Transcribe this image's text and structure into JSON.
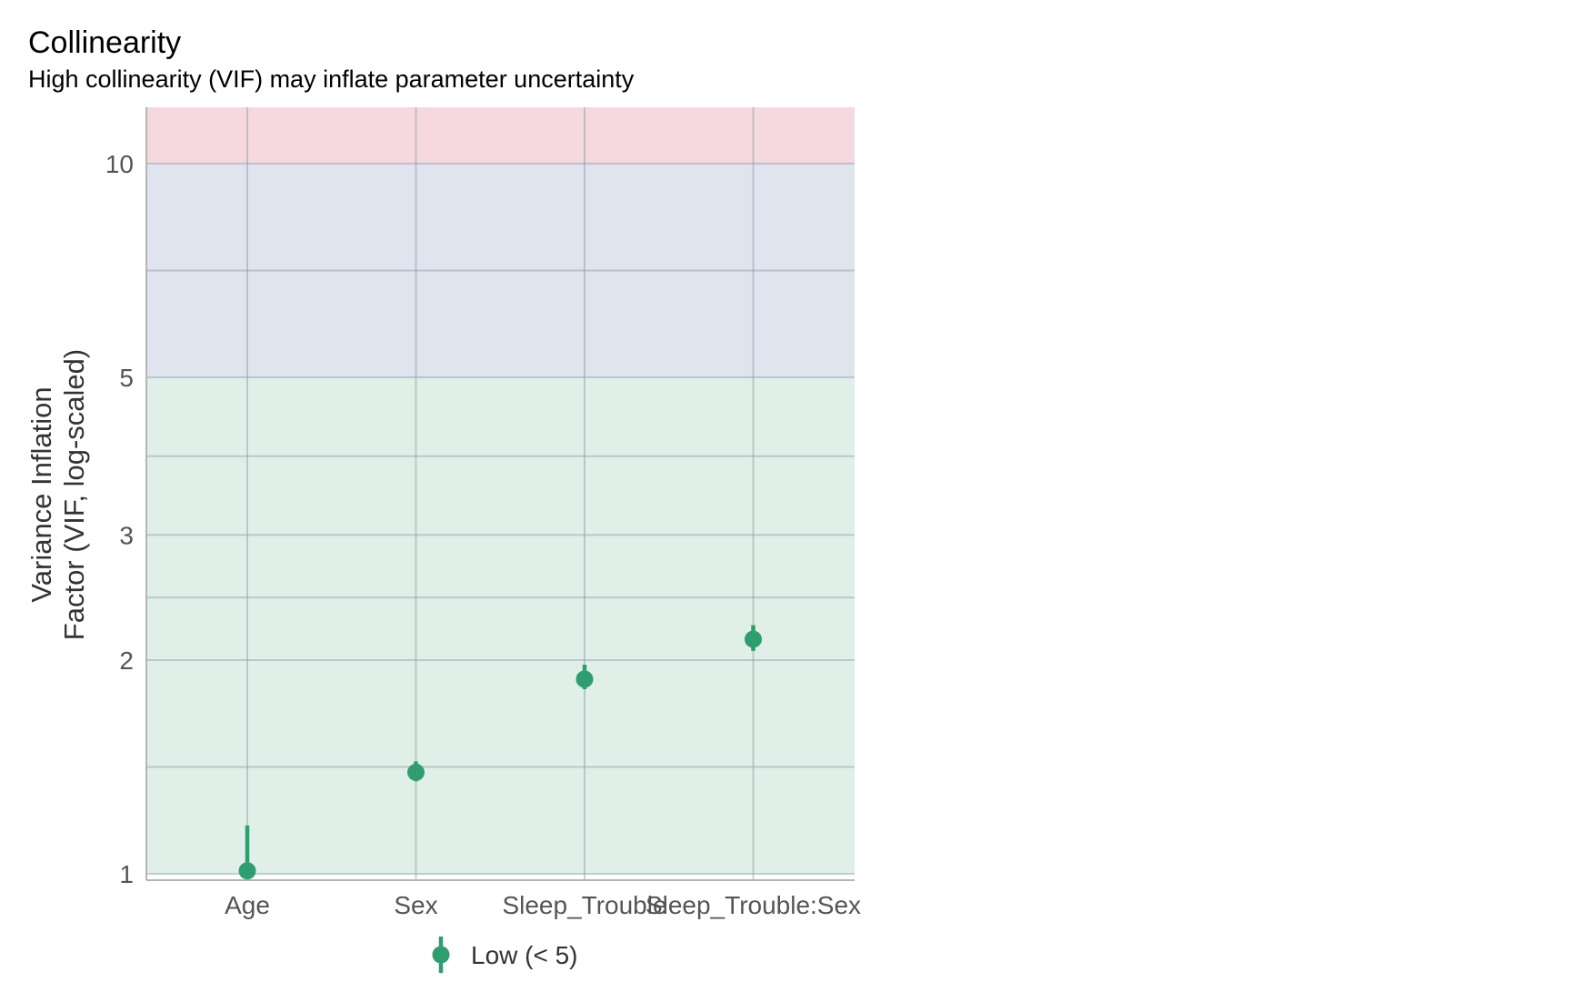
{
  "chart_data": {
    "type": "scatter",
    "title": "Collinearity",
    "subtitle": "High collinearity (VIF) may inflate parameter uncertainty",
    "ylabel_lines": [
      "Variance Inflation",
      "Factor (VIF, log-scaled)"
    ],
    "xlabel": "",
    "y_scale": "log10",
    "ylim": [
      0.98,
      12
    ],
    "y_ticks": [
      {
        "value": 1,
        "label": "1"
      },
      {
        "value": 2,
        "label": "2"
      },
      {
        "value": 3,
        "label": "3"
      },
      {
        "value": 5,
        "label": "5"
      },
      {
        "value": 10,
        "label": "10"
      }
    ],
    "y_minor_gridlines": [
      1.4142,
      2.4495,
      3.873,
      7.0711
    ],
    "categories": [
      "Age",
      "Sex",
      "Sleep_Trouble",
      "Sleep_Trouble:Sex"
    ],
    "series": [
      {
        "name": "Low (< 5)",
        "color": "#2f9e6e",
        "points": [
          {
            "category": "Age",
            "vif": 1.01,
            "ci_low": 1.0,
            "ci_high": 1.17
          },
          {
            "category": "Sex",
            "vif": 1.39,
            "ci_low": 1.35,
            "ci_high": 1.44
          },
          {
            "category": "Sleep_Trouble",
            "vif": 1.88,
            "ci_low": 1.82,
            "ci_high": 1.97
          },
          {
            "category": "Sleep_Trouble:Sex",
            "vif": 2.14,
            "ci_low": 2.06,
            "ci_high": 2.24
          }
        ]
      }
    ],
    "bands": [
      {
        "name": "low",
        "from": 1,
        "to": 5,
        "color": "#e0f0e8"
      },
      {
        "name": "moderate",
        "from": 5,
        "to": 10,
        "color": "#dfe4ef"
      },
      {
        "name": "high",
        "from": 10,
        "to": 12,
        "color": "#f5d9de"
      }
    ],
    "legend": {
      "position": "bottom",
      "entries": [
        {
          "label": "Low (< 5)",
          "color": "#2f9e6e"
        }
      ]
    },
    "grid": true
  }
}
